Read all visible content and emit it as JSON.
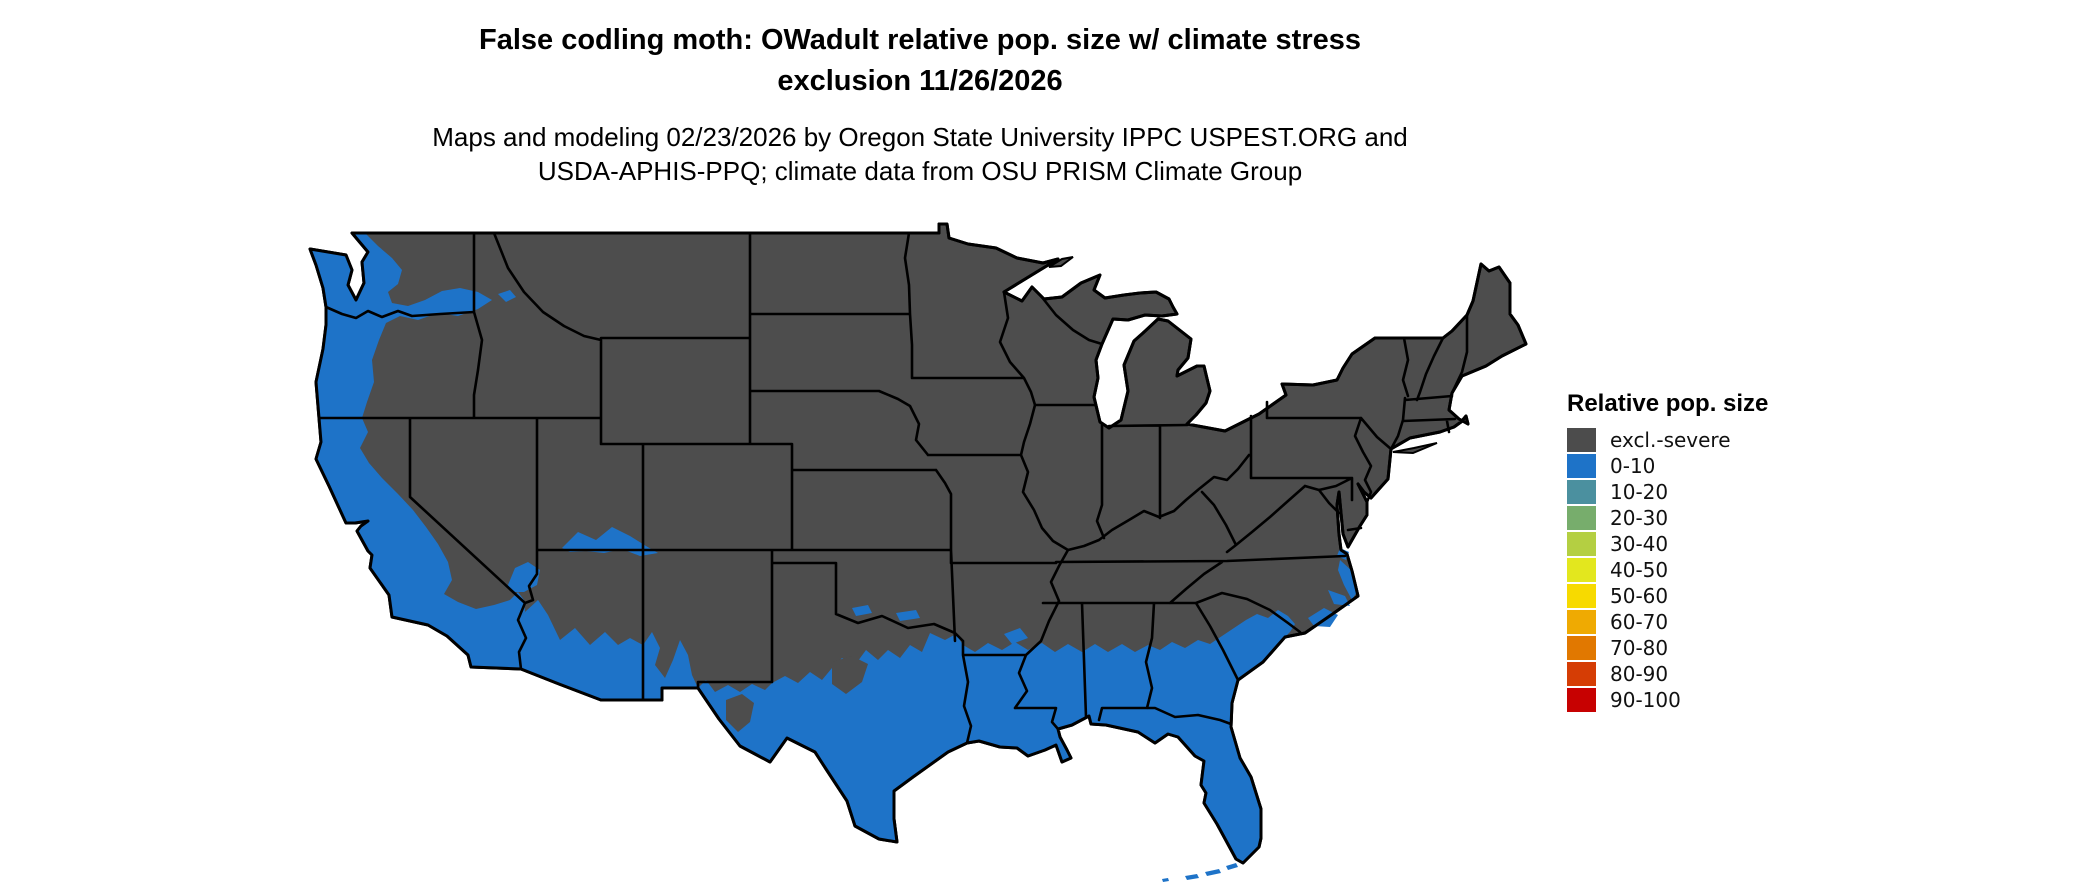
{
  "header": {
    "title_line1": "False codling moth: OWadult relative pop. size w/ climate stress",
    "title_line2": "exclusion 11/26/2026",
    "subtitle_line1": "Maps and modeling 02/23/2026 by Oregon State University IPPC USPEST.ORG and",
    "subtitle_line2": "USDA-APHIS-PPQ; climate data from OSU PRISM Climate Group"
  },
  "legend": {
    "title": "Relative pop. size",
    "items": [
      {
        "label": "excl.-severe",
        "color": "#4c4c4c"
      },
      {
        "label": "0-10",
        "color": "#1e73c8"
      },
      {
        "label": "10-20",
        "color": "#4b909f"
      },
      {
        "label": "20-30",
        "color": "#77ad6c"
      },
      {
        "label": "30-40",
        "color": "#b4cf42"
      },
      {
        "label": "40-50",
        "color": "#e3e71e"
      },
      {
        "label": "50-60",
        "color": "#f7da00"
      },
      {
        "label": "60-70",
        "color": "#efaa02"
      },
      {
        "label": "70-80",
        "color": "#e17800"
      },
      {
        "label": "80-90",
        "color": "#d53d05"
      },
      {
        "label": "90-100",
        "color": "#c70101"
      }
    ]
  },
  "map": {
    "colors": {
      "excluded_fill": "#4d4d4d",
      "low_pop_fill": "#1e73c8",
      "border_stroke": "#000000",
      "water_background": "#ffffff"
    }
  }
}
